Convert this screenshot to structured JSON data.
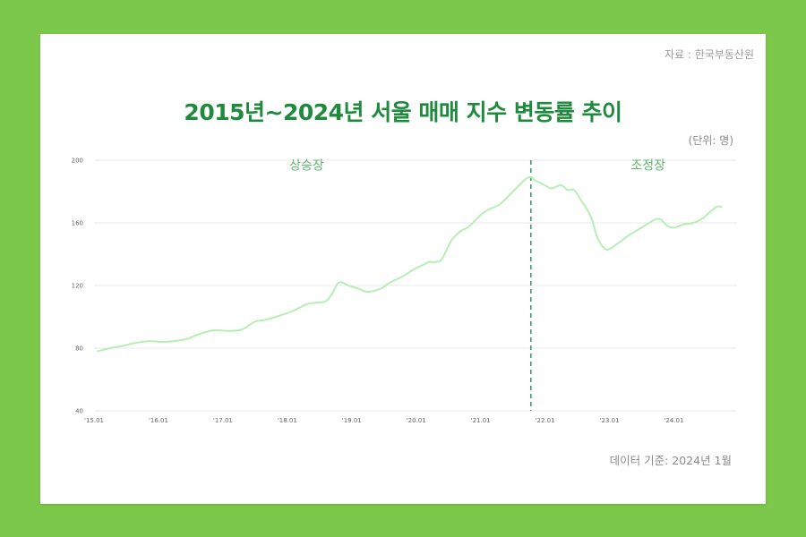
{
  "source": "자료 : 한국부동산원",
  "title": "2015년~2024년 서울 매매 지수 변동률 추이",
  "unit": "(단위: 명)",
  "footer": "데이터 기준: 2024년 1월",
  "colors": {
    "background": "#7cc84a",
    "title": "#1f8a3e",
    "line": "#b6efb4",
    "annotation": "#5fb46e",
    "divider": "#3f9a6a",
    "grid": "#e8e8e8"
  },
  "chart_data": {
    "type": "line",
    "title": "2015년~2024년 서울 매매 지수 변동률 추이",
    "xlabel": "",
    "ylabel": "",
    "ylim": [
      40,
      200
    ],
    "yticks": [
      40,
      80,
      120,
      160,
      200
    ],
    "xlim": [
      2015.0,
      2024.98
    ],
    "xticks": [
      {
        "x": 2015.0,
        "label": "'15.01"
      },
      {
        "x": 2016.0,
        "label": "'16.01"
      },
      {
        "x": 2017.0,
        "label": "'17.01"
      },
      {
        "x": 2018.0,
        "label": "'18.01"
      },
      {
        "x": 2019.0,
        "label": "'19.01"
      },
      {
        "x": 2020.0,
        "label": "'20.01"
      },
      {
        "x": 2021.0,
        "label": "'21.01"
      },
      {
        "x": 2022.0,
        "label": "'22.01"
      },
      {
        "x": 2023.0,
        "label": "'23.01"
      },
      {
        "x": 2024.0,
        "label": "'24.01"
      }
    ],
    "grid": true,
    "series": [
      {
        "x": [
          2015.05,
          2015.25,
          2015.45,
          2015.6,
          2015.85,
          2016.05,
          2016.25,
          2016.45,
          2016.6,
          2016.8,
          2016.9,
          2017.1,
          2017.3,
          2017.5,
          2017.65,
          2017.9,
          2018.1,
          2018.3,
          2018.45,
          2018.6,
          2018.7,
          2018.8,
          2018.95,
          2019.1,
          2019.25,
          2019.45,
          2019.6,
          2019.8,
          2019.95,
          2020.1,
          2020.2,
          2020.3,
          2020.4,
          2020.55,
          2020.7,
          2020.8,
          2021.0,
          2021.1,
          2021.3,
          2021.5,
          2021.7,
          2021.78,
          2021.85,
          2022.0,
          2022.1,
          2022.25,
          2022.35,
          2022.45,
          2022.55,
          2022.7,
          2022.82,
          2022.95,
          2023.1,
          2023.3,
          2023.5,
          2023.7,
          2023.8,
          2023.9,
          2024.0,
          2024.15,
          2024.3,
          2024.45,
          2024.65,
          2024.75
        ],
        "values": [
          78,
          80,
          81.5,
          83,
          84.5,
          84,
          84.5,
          86,
          88.5,
          91,
          91.5,
          91,
          92,
          97,
          98,
          101,
          104,
          108,
          109,
          110,
          115,
          122,
          120,
          118,
          116,
          118,
          122,
          126,
          130,
          133,
          135,
          135,
          137,
          149,
          155,
          157,
          165,
          168,
          172,
          180,
          188,
          189,
          187,
          184,
          182,
          184,
          181,
          181,
          175,
          165,
          150,
          143,
          146,
          152,
          157,
          162,
          162,
          158,
          157,
          159,
          160,
          163,
          170,
          170
        ]
      }
    ],
    "divider": {
      "x": 2021.78
    },
    "annotations": [
      {
        "text": "상승장",
        "x": 2018.3,
        "y": 194
      },
      {
        "text": "조정장",
        "x": 2023.6,
        "y": 194
      }
    ]
  }
}
